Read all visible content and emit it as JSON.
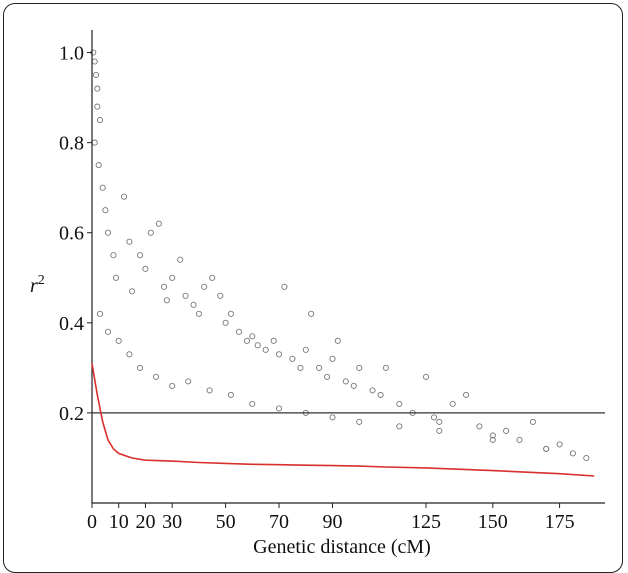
{
  "chart_data": {
    "type": "scatter",
    "title": "",
    "xlabel": "Genetic distance (cM)",
    "ylabel": "r",
    "ylabel_superscript": "2",
    "xlim": [
      0,
      192
    ],
    "ylim": [
      0,
      1.05
    ],
    "x_ticks": [
      0,
      10,
      20,
      30,
      50,
      70,
      90,
      125,
      150,
      175
    ],
    "y_ticks": [
      {
        "value": 1.0,
        "label": "1.0"
      },
      {
        "value": 0.8,
        "label": "0.8"
      },
      {
        "value": 0.6,
        "label": "0.6"
      },
      {
        "value": 0.4,
        "label": "0.4"
      },
      {
        "value": 0.2,
        "label": "0.2"
      }
    ],
    "threshold_line": {
      "y": 0.2,
      "color": "#333333"
    },
    "points_color": "#777777",
    "curve_color": "#d9302c",
    "decay_curve": {
      "x": [
        0,
        2,
        4,
        6,
        8,
        10,
        15,
        20,
        30,
        40,
        50,
        60,
        70,
        80,
        90,
        100,
        110,
        125,
        150,
        175,
        188
      ],
      "y": [
        0.31,
        0.24,
        0.18,
        0.14,
        0.12,
        0.11,
        0.1,
        0.095,
        0.093,
        0.09,
        0.088,
        0.086,
        0.085,
        0.084,
        0.083,
        0.082,
        0.08,
        0.078,
        0.072,
        0.065,
        0.06
      ]
    },
    "points": {
      "x": [
        0.5,
        1,
        1.5,
        2,
        2,
        3,
        1,
        2.5,
        4,
        5,
        6,
        8,
        9,
        12,
        14,
        15,
        18,
        20,
        22,
        25,
        27,
        28,
        30,
        33,
        35,
        38,
        40,
        42,
        45,
        48,
        50,
        52,
        55,
        58,
        60,
        62,
        65,
        68,
        70,
        72,
        75,
        78,
        80,
        82,
        85,
        88,
        90,
        92,
        95,
        98,
        100,
        105,
        108,
        110,
        115,
        120,
        125,
        128,
        130,
        135,
        140,
        145,
        150,
        155,
        160,
        165,
        170,
        175,
        180,
        185,
        3,
        6,
        10,
        14,
        18,
        24,
        30,
        36,
        44,
        52,
        60,
        70,
        80,
        90,
        100,
        115,
        130,
        150,
        170
      ],
      "y": [
        1.0,
        0.98,
        0.95,
        0.92,
        0.88,
        0.85,
        0.8,
        0.75,
        0.7,
        0.65,
        0.6,
        0.55,
        0.5,
        0.68,
        0.58,
        0.47,
        0.55,
        0.52,
        0.6,
        0.62,
        0.48,
        0.45,
        0.5,
        0.54,
        0.46,
        0.44,
        0.42,
        0.48,
        0.5,
        0.46,
        0.4,
        0.42,
        0.38,
        0.36,
        0.37,
        0.35,
        0.34,
        0.36,
        0.33,
        0.48,
        0.32,
        0.3,
        0.34,
        0.42,
        0.3,
        0.28,
        0.32,
        0.36,
        0.27,
        0.26,
        0.3,
        0.25,
        0.24,
        0.3,
        0.22,
        0.2,
        0.28,
        0.19,
        0.18,
        0.22,
        0.24,
        0.17,
        0.15,
        0.16,
        0.14,
        0.18,
        0.12,
        0.13,
        0.11,
        0.1,
        0.42,
        0.38,
        0.36,
        0.33,
        0.3,
        0.28,
        0.26,
        0.27,
        0.25,
        0.24,
        0.22,
        0.21,
        0.2,
        0.19,
        0.18,
        0.17,
        0.16,
        0.14,
        0.12
      ]
    }
  }
}
